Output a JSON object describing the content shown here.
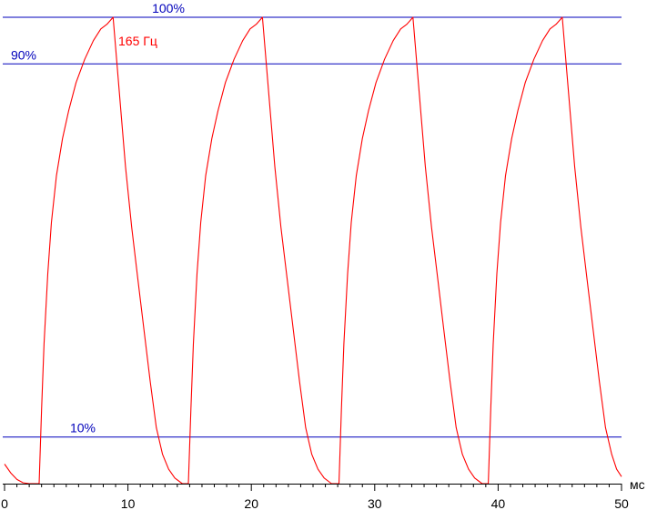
{
  "chart_data": {
    "type": "line",
    "xlim": [
      0,
      50
    ],
    "ylim": [
      0,
      100
    ],
    "x_unit_label": "мс",
    "x_ticks": [
      0,
      10,
      20,
      30,
      40,
      50
    ],
    "grid": false,
    "reference_lines": [
      {
        "label": "100%",
        "y": 100,
        "color": "#0000bb"
      },
      {
        "label": "90%",
        "y": 90,
        "color": "#0000bb"
      },
      {
        "label": "10%",
        "y": 10,
        "color": "#0000bb"
      }
    ],
    "series": [
      {
        "name": "165 Гц",
        "color": "#ff0000",
        "points": [
          [
            0,
            4.2
          ],
          [
            0.5,
            2.3
          ],
          [
            1.0,
            0.9
          ],
          [
            1.5,
            0.2
          ],
          [
            2.0,
            0
          ],
          [
            2.5,
            0
          ],
          [
            2.8,
            0
          ],
          [
            3.0,
            16
          ],
          [
            3.2,
            30
          ],
          [
            3.5,
            45
          ],
          [
            3.8,
            56
          ],
          [
            4.2,
            66
          ],
          [
            4.7,
            74
          ],
          [
            5.2,
            80
          ],
          [
            5.8,
            86
          ],
          [
            6.5,
            91
          ],
          [
            7.2,
            95
          ],
          [
            7.8,
            97.5
          ],
          [
            8.3,
            98.5
          ],
          [
            8.8,
            100
          ],
          [
            9.3,
            84
          ],
          [
            9.8,
            68
          ],
          [
            10.3,
            55
          ],
          [
            10.8,
            44
          ],
          [
            11.3,
            33
          ],
          [
            11.8,
            22
          ],
          [
            12.3,
            12
          ],
          [
            12.8,
            6.3
          ],
          [
            13.3,
            3.1
          ],
          [
            13.8,
            1.2
          ],
          [
            14.4,
            0
          ],
          [
            14.9,
            0
          ],
          [
            15.1,
            16
          ],
          [
            15.3,
            30
          ],
          [
            15.6,
            45
          ],
          [
            15.9,
            56
          ],
          [
            16.3,
            66
          ],
          [
            16.8,
            74
          ],
          [
            17.3,
            80
          ],
          [
            17.9,
            86
          ],
          [
            18.6,
            91
          ],
          [
            19.3,
            95
          ],
          [
            19.9,
            97.5
          ],
          [
            20.4,
            98.5
          ],
          [
            20.9,
            100
          ],
          [
            21.4,
            84
          ],
          [
            21.9,
            68
          ],
          [
            22.4,
            55
          ],
          [
            22.9,
            44
          ],
          [
            23.4,
            33
          ],
          [
            23.9,
            22
          ],
          [
            24.4,
            12
          ],
          [
            24.9,
            6.3
          ],
          [
            25.4,
            3.1
          ],
          [
            25.9,
            1.2
          ],
          [
            26.5,
            0
          ],
          [
            27.1,
            0
          ],
          [
            27.3,
            16
          ],
          [
            27.5,
            30
          ],
          [
            27.8,
            45
          ],
          [
            28.1,
            56
          ],
          [
            28.5,
            66
          ],
          [
            29.0,
            74
          ],
          [
            29.5,
            80
          ],
          [
            30.1,
            86
          ],
          [
            30.8,
            91
          ],
          [
            31.5,
            95
          ],
          [
            32.1,
            97.5
          ],
          [
            32.6,
            98.5
          ],
          [
            33.1,
            100
          ],
          [
            33.6,
            84
          ],
          [
            34.1,
            68
          ],
          [
            34.6,
            55
          ],
          [
            35.1,
            44
          ],
          [
            35.6,
            33
          ],
          [
            36.1,
            22
          ],
          [
            36.6,
            12
          ],
          [
            37.1,
            6.3
          ],
          [
            37.6,
            3.1
          ],
          [
            38.1,
            1.2
          ],
          [
            38.7,
            0
          ],
          [
            39.2,
            0
          ],
          [
            39.4,
            16
          ],
          [
            39.6,
            30
          ],
          [
            39.9,
            45
          ],
          [
            40.2,
            56
          ],
          [
            40.6,
            66
          ],
          [
            41.1,
            74
          ],
          [
            41.6,
            80
          ],
          [
            42.2,
            86
          ],
          [
            42.9,
            91
          ],
          [
            43.6,
            95
          ],
          [
            44.2,
            97.5
          ],
          [
            44.7,
            98.5
          ],
          [
            45.2,
            100
          ],
          [
            45.7,
            84
          ],
          [
            46.2,
            68
          ],
          [
            46.7,
            55
          ],
          [
            47.2,
            44
          ],
          [
            47.7,
            33
          ],
          [
            48.2,
            22
          ],
          [
            48.7,
            12
          ],
          [
            49.2,
            6.3
          ],
          [
            49.6,
            3.1
          ],
          [
            50.0,
            1.5
          ]
        ]
      }
    ]
  }
}
